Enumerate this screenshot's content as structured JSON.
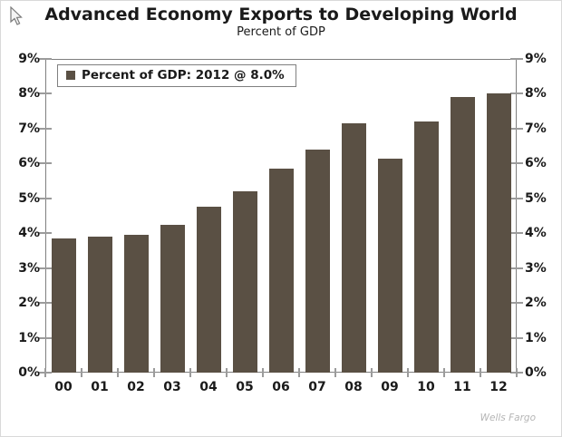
{
  "title": "Advanced Economy Exports to Developing World",
  "subtitle": "Percent of GDP",
  "legend": {
    "label": "Percent of GDP: 2012 @ 8.0%",
    "marker_color": "#5a5044"
  },
  "watermark": "Wells Fargo",
  "colors": {
    "bar": "#5a5044",
    "axis_box": "#7f7f7f",
    "tick": "#9b9b9b",
    "text": "#1a1a1a",
    "watermark": "#b5b5b5",
    "legend_border": "#808080"
  },
  "chart_data": {
    "type": "bar",
    "title": "Advanced Economy Exports to Developing World",
    "subtitle": "Percent of GDP",
    "series_name": "Percent of GDP",
    "legend_entry": "Percent of GDP: 2012 @ 8.0%",
    "legend_position": "top-left-inside",
    "categories": [
      "00",
      "01",
      "02",
      "03",
      "04",
      "05",
      "06",
      "07",
      "08",
      "09",
      "10",
      "11",
      "12"
    ],
    "values": [
      3.85,
      3.9,
      3.95,
      4.25,
      4.75,
      5.2,
      5.85,
      6.4,
      7.15,
      6.15,
      7.2,
      7.9,
      8.0
    ],
    "xlabel": "",
    "ylabel": "Percent of GDP",
    "ylim": [
      0,
      9
    ],
    "ytick_labels": [
      "0%",
      "1%",
      "2%",
      "3%",
      "4%",
      "5%",
      "6%",
      "7%",
      "8%",
      "9%"
    ],
    "y_axis_sides": "both",
    "grid": false,
    "bar_color": "#5a5044",
    "annotation": "Wells Fargo"
  }
}
